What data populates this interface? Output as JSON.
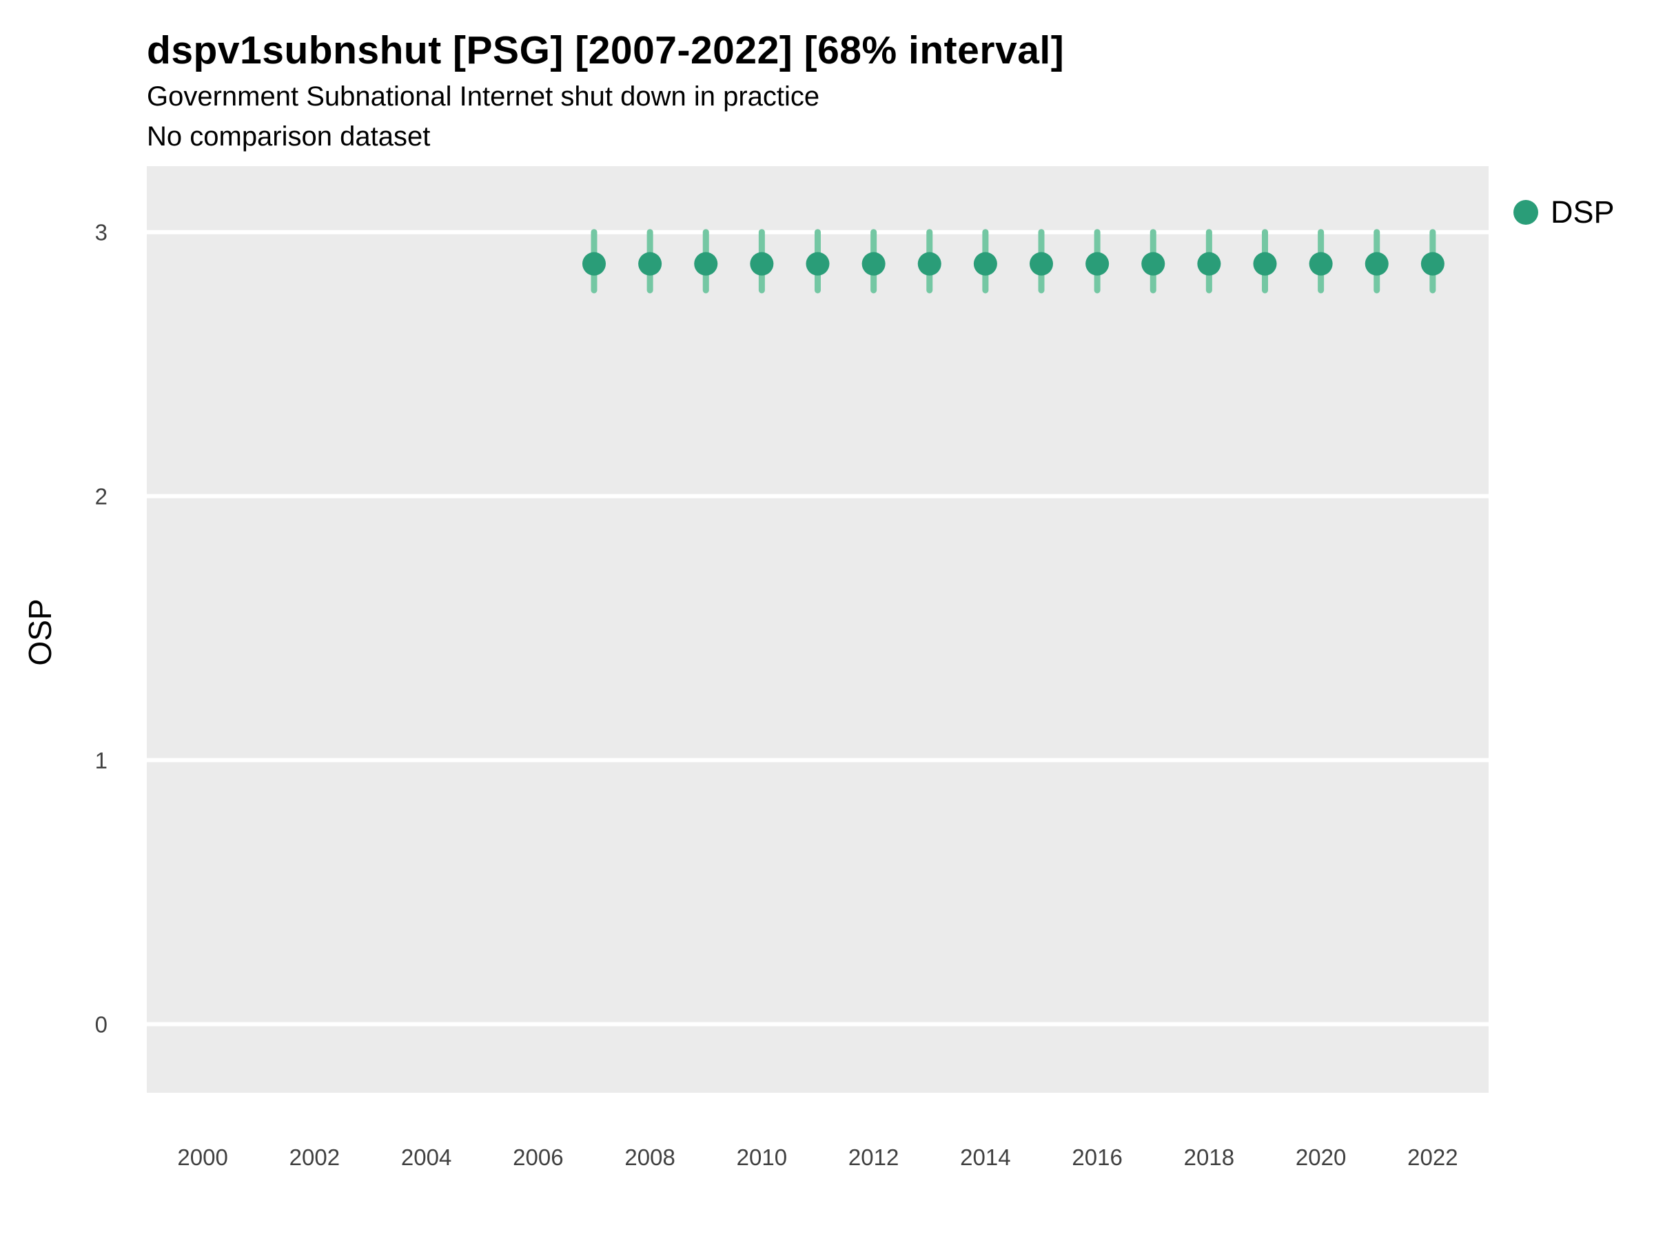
{
  "chart_data": {
    "type": "scatter",
    "title": "dspv1subnshut [PSG] [2007-2022] [68% interval]",
    "subtitle": "Government Subnational Internet shut down in practice",
    "note": "No comparison dataset",
    "xlabel": "",
    "ylabel": "OSP",
    "xlim": [
      1999,
      2023
    ],
    "ylim": [
      -0.26,
      3.25
    ],
    "x_ticks": [
      2000,
      2002,
      2004,
      2006,
      2008,
      2010,
      2012,
      2014,
      2016,
      2018,
      2020,
      2022
    ],
    "y_ticks": [
      0,
      1,
      2,
      3
    ],
    "grid": "horizontal-major-only",
    "panel_bg": "#EBEBEB",
    "grid_color": "#FFFFFF",
    "legend_position": "right",
    "series": [
      {
        "name": "DSP",
        "color": "#2A9D78",
        "interval_color": "#74C7A3",
        "interval_label": "68% interval",
        "x": [
          2007,
          2008,
          2009,
          2010,
          2011,
          2012,
          2013,
          2014,
          2015,
          2016,
          2017,
          2018,
          2019,
          2020,
          2021,
          2022
        ],
        "y": [
          2.88,
          2.88,
          2.88,
          2.88,
          2.88,
          2.88,
          2.88,
          2.88,
          2.88,
          2.88,
          2.88,
          2.88,
          2.88,
          2.88,
          2.88,
          2.88
        ],
        "lo": [
          2.78,
          2.78,
          2.78,
          2.78,
          2.78,
          2.78,
          2.78,
          2.78,
          2.78,
          2.78,
          2.78,
          2.78,
          2.78,
          2.78,
          2.78,
          2.78
        ],
        "hi": [
          3.0,
          3.0,
          3.0,
          3.0,
          3.0,
          3.0,
          3.0,
          3.0,
          3.0,
          3.0,
          3.0,
          3.0,
          3.0,
          3.0,
          3.0,
          3.0
        ]
      }
    ]
  }
}
